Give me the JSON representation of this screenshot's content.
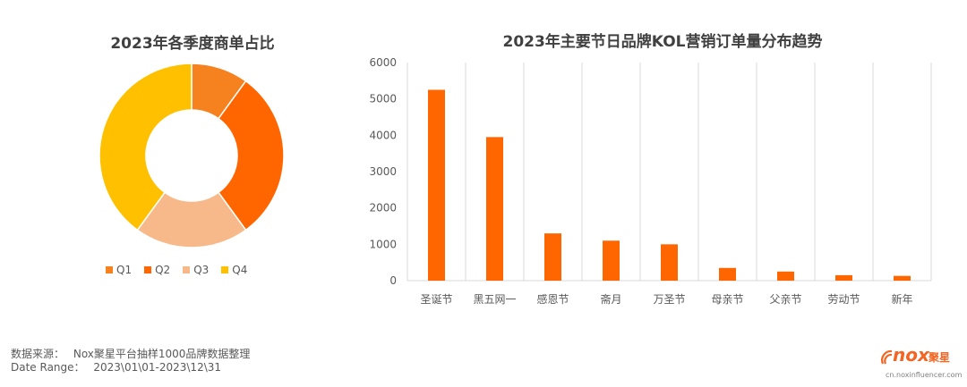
{
  "colors": {
    "q1": "#f5821f",
    "q2": "#ff6600",
    "q3": "#f7b98a",
    "q4": "#ffc000",
    "bar": "#ff6600",
    "grid": "#d9d9d9"
  },
  "chart_data": [
    {
      "type": "pie",
      "title": "2023年各季度商单占比",
      "categories": [
        "Q1",
        "Q2",
        "Q3",
        "Q4"
      ],
      "values": [
        10,
        30,
        20,
        40
      ],
      "donut": true,
      "legend_position": "bottom"
    },
    {
      "type": "bar",
      "title": "2023年主要节日品牌KOL营销订单量分布趋势",
      "categories": [
        "圣诞节",
        "黑五网一",
        "感恩节",
        "斋月",
        "万圣节",
        "母亲节",
        "父亲节",
        "劳动节",
        "新年"
      ],
      "values": [
        5250,
        3950,
        1300,
        1100,
        1000,
        350,
        250,
        150,
        130
      ],
      "ylim": [
        0,
        6000
      ],
      "yticks": [
        "0",
        "1000",
        "2000",
        "3000",
        "4000",
        "5000",
        "6000"
      ],
      "grid": true
    }
  ],
  "footer": {
    "source_label": "数据来源：",
    "source_value": "Nox聚星平台抽样1000品牌数据整理",
    "range_label": "Date Range：",
    "range_value": "2023\\01\\01-2023\\12\\31"
  },
  "logo": {
    "brand": "nox",
    "brand_cn": "聚星",
    "url": "cn.noxinfluencer.com"
  }
}
